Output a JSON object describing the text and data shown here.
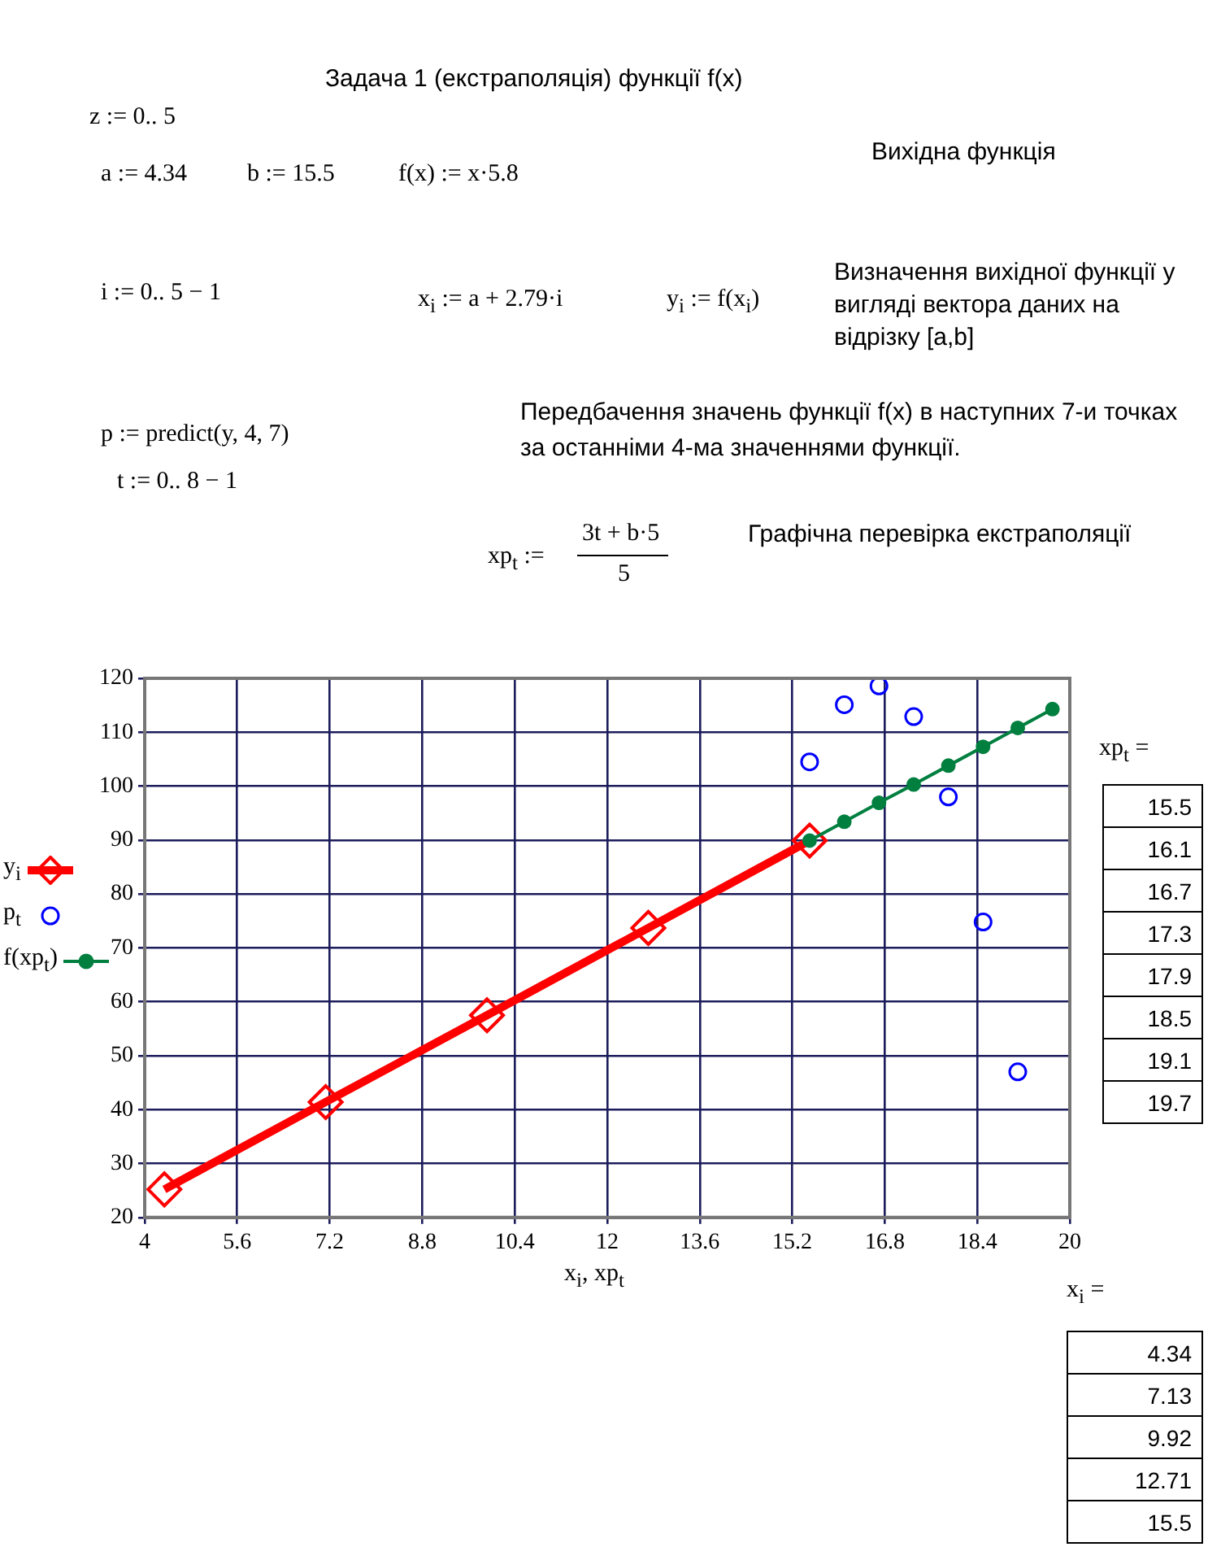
{
  "chart_data": {
    "type": "line",
    "title": "Задача 1 (екстраполяція) функції f(x)",
    "xlabel": "x$_{i}$, xp$_{t}$",
    "xlim": [
      4,
      20
    ],
    "xticks": [
      4,
      5.6,
      7.2,
      8.8,
      10.4,
      12,
      13.6,
      15.2,
      16.8,
      18.4,
      20
    ],
    "ylim": [
      20,
      120
    ],
    "yticks": [
      20,
      30,
      40,
      50,
      60,
      70,
      80,
      90,
      100,
      110,
      120
    ],
    "grid": true,
    "legend": "left",
    "series": [
      {
        "name": "y$_{i}$",
        "marker": "diamond",
        "color": "#ff0000",
        "x": [
          4.34,
          7.13,
          9.92,
          12.71,
          15.5
        ],
        "values": [
          25.2,
          41.4,
          57.5,
          73.7,
          89.9
        ]
      },
      {
        "name": "p$_{t}$",
        "type": "scatter",
        "marker": "circle",
        "color": "#0000ff",
        "x": [
          15.5,
          16.1,
          16.7,
          17.3,
          17.9,
          18.5,
          19.1
        ],
        "values": [
          104.5,
          115.1,
          118.6,
          112.9,
          98.0,
          74.8,
          47
        ]
      },
      {
        "name": "f(xp$_{t}$)",
        "marker": "circle",
        "color": "#007f3f",
        "x": [
          15.5,
          16.1,
          16.7,
          17.3,
          17.9,
          18.5,
          19.1,
          19.7
        ],
        "values": [
          89.9,
          93.4,
          96.9,
          100.3,
          103.8,
          107.3,
          110.8,
          114.3
        ]
      }
    ],
    "annotations": [
      "z := 0.. 5",
      "a := 4.34",
      "b := 15.5",
      "f(x) := x·5.8",
      "Вихідна функція",
      "i := 0.. 5 − 1",
      "x$_{i}$ := a + 2.79·i",
      "y$_{i}$ := f(x$_{i}$)",
      "Визначення вихідної функції у вигляді вектора даних на відрізку [a,b]",
      "p := predict(y, 4, 7)",
      "Передбачення значень функції f(x) в наступних 7-и точках за останніми 4-ма значеннями функції.",
      "t := 0.. 8 − 1",
      "xp$_{t}$ :=",
      "3t + b·5",
      "5",
      "Графічна перевірка екстраполяції",
      "xp$_{t}$ =",
      "x$_{i}$ =",
      "15.5",
      "16.1",
      "16.7",
      "17.3",
      "17.9",
      "18.5",
      "19.1",
      "19.7",
      "4.34",
      "7.13",
      "9.92",
      "12.71",
      "15.5"
    ]
  }
}
